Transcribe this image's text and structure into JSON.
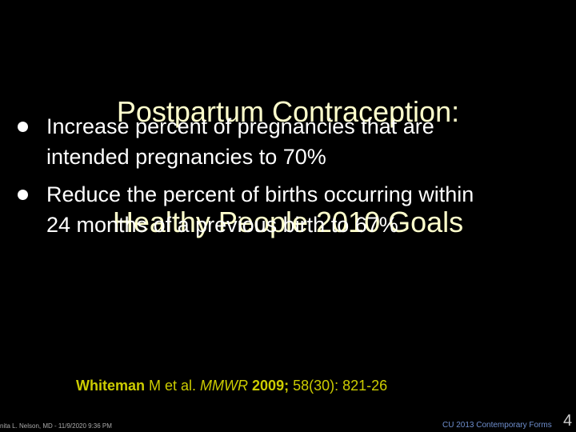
{
  "title": {
    "lines": [
      "Postpartum Contraception:",
      "Healthy People 2010 Goals"
    ]
  },
  "bullets": [
    {
      "lines": [
        "Increase percent of pregnancies that are",
        "intended pregnancies to 70%"
      ]
    },
    {
      "lines": [
        "Reduce the percent of births occurring within",
        "24 months of a previous birth to 67%"
      ]
    }
  ],
  "citation": {
    "parts": [
      "Whiteman",
      " M et al. ",
      "MMWR",
      " 2009;",
      " 58(30): 821-26"
    ]
  },
  "footer": {
    "left": "nita L. Nelson, MD - 11/9/2020 9:36 PM",
    "right": "CU 2013 Contemporary Forms",
    "page": "4"
  }
}
